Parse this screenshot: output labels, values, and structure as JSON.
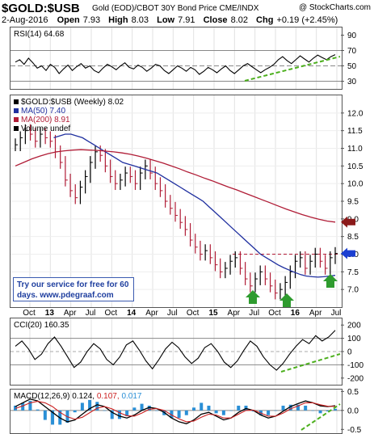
{
  "header": {
    "symbol": "$GOLD:$USB",
    "description": "Gold (EOD)/CBOT 30Y Bond Price  CME/INDX",
    "copyright": "@ StockCharts.com",
    "date": "2-Aug-2016",
    "open_label": "Open",
    "open": "7.93",
    "high_label": "High",
    "high": "8.03",
    "low_label": "Low",
    "low": "7.91",
    "close_label": "Close",
    "close": "8.02",
    "chg_label": "Chg",
    "chg": "+0.19 (+2.45%)"
  },
  "promo": {
    "line1": "Try our service for free for 60",
    "line2": "days.  www.pdegraaf.com"
  },
  "colors": {
    "price": "#000000",
    "ma50": "#1f2f9f",
    "ma200": "#b01c36",
    "trend": "#4caf1d",
    "arrow_up": "#2e9b2e",
    "arrow_ma200": "#8b1a1a",
    "arrow_price": "#1b3fd1",
    "macd_line": "#000000",
    "signal_line": "#cc2020",
    "histogram": "#2a8fd6"
  },
  "chart_data": [
    {
      "type": "line",
      "title": "RSI(14) 64.68",
      "label_name": "RSI(14)",
      "label_value": "64.68",
      "ylim": [
        20,
        100
      ],
      "yticks": [
        30,
        50,
        70,
        90
      ],
      "reference_lines": [
        30,
        50,
        70
      ],
      "values": [
        55,
        58,
        52,
        60,
        54,
        47,
        50,
        44,
        52,
        48,
        40,
        46,
        51,
        44,
        49,
        53,
        47,
        50,
        44,
        41,
        47,
        52,
        49,
        45,
        50,
        54,
        48,
        46,
        51,
        48,
        43,
        47,
        52,
        50,
        44,
        40,
        45,
        50,
        47,
        43,
        48,
        45,
        39,
        43,
        48,
        45,
        41,
        46,
        50,
        44,
        40,
        45,
        50,
        53,
        49,
        45,
        41,
        45,
        48,
        52,
        58,
        62,
        57,
        53,
        58,
        63,
        59,
        55,
        60,
        64,
        61,
        58,
        62,
        64.68
      ]
    },
    {
      "type": "line",
      "title": "$GOLD:$USB (Weekly) 8.02",
      "ylim": [
        6.5,
        12.5
      ],
      "yticks": [
        7.0,
        7.5,
        8.0,
        8.5,
        9.0,
        9.5,
        10.0,
        10.5,
        11.0,
        11.5,
        12.0
      ],
      "x_tick_labels": [
        "Oct",
        "13",
        "Apr",
        "Jul",
        "Oct",
        "14",
        "Apr",
        "Jul",
        "Oct",
        "15",
        "Apr",
        "Jul",
        "Oct",
        "16",
        "Apr",
        "Jul"
      ],
      "series": [
        {
          "name": "$GOLD:$USB (Weekly) 8.02",
          "values": [
            11.1,
            11.3,
            11.5,
            11.4,
            11.2,
            11.4,
            11.3,
            11.2,
            10.9,
            10.6,
            10.1,
            9.8,
            9.6,
            9.9,
            10.2,
            10.6,
            10.9,
            10.8,
            10.5,
            10.2,
            10.0,
            10.1,
            10.3,
            10.2,
            10.0,
            10.3,
            10.5,
            10.3,
            10.0,
            9.8,
            9.5,
            9.3,
            9.1,
            8.9,
            8.7,
            8.4,
            8.2,
            8.0,
            8.1,
            7.9,
            7.7,
            7.5,
            7.6,
            7.8,
            7.9,
            7.6,
            7.3,
            7.1,
            7.3,
            7.5,
            7.3,
            7.1,
            6.9,
            7.0,
            7.2,
            7.5,
            7.8,
            7.9,
            7.6,
            7.8,
            8.0,
            7.8,
            7.6,
            7.9,
            8.02
          ]
        },
        {
          "name": "MA(50) 7.40",
          "values": [
            11.3,
            11.35,
            11.4,
            11.4,
            11.35,
            11.3,
            11.2,
            11.1,
            11.0,
            10.9,
            10.8,
            10.7,
            10.6,
            10.55,
            10.5,
            10.45,
            10.4,
            10.35,
            10.3,
            10.2,
            10.1,
            10.0,
            9.9,
            9.8,
            9.7,
            9.6,
            9.5,
            9.35,
            9.2,
            9.05,
            8.9,
            8.75,
            8.6,
            8.45,
            8.3,
            8.15,
            8.0,
            7.9,
            7.8,
            7.7,
            7.62,
            7.55,
            7.48,
            7.42,
            7.38,
            7.36,
            7.35,
            7.36,
            7.38,
            7.4
          ]
        },
        {
          "name": "MA(200) 8.91",
          "values": [
            10.5,
            10.6,
            10.7,
            10.78,
            10.85,
            10.9,
            10.93,
            10.95,
            10.96,
            10.95,
            10.94,
            10.92,
            10.9,
            10.87,
            10.83,
            10.78,
            10.72,
            10.65,
            10.58,
            10.5,
            10.42,
            10.33,
            10.25,
            10.16,
            10.08,
            9.99,
            9.9,
            9.82,
            9.73,
            9.64,
            9.55,
            9.46,
            9.37,
            9.28,
            9.2,
            9.12,
            9.05,
            8.99,
            8.94,
            8.91
          ]
        },
        {
          "name": "Volume undef",
          "values": []
        }
      ]
    },
    {
      "type": "line",
      "title": "CCI(20) 160.35",
      "label_name": "CCI(20)",
      "label_value": "160.35",
      "ylim": [
        -250,
        250
      ],
      "yticks": [
        -200,
        -100,
        0,
        100,
        200
      ],
      "reference_lines": [
        -100,
        100
      ],
      "values": [
        40,
        80,
        20,
        -60,
        -20,
        60,
        110,
        40,
        -40,
        -120,
        -80,
        0,
        60,
        20,
        -60,
        -100,
        -40,
        50,
        80,
        10,
        -70,
        -130,
        -60,
        20,
        70,
        30,
        -40,
        -90,
        -50,
        30,
        60,
        0,
        -80,
        -120,
        -70,
        10,
        80,
        40,
        -40,
        -100,
        -140,
        -90,
        -20,
        40,
        90,
        60,
        120,
        80,
        110,
        160.35
      ]
    },
    {
      "type": "line",
      "title": "MACD(12,26,9) 0.124, 0.107, 0.017",
      "label_name": "MACD(12,26,9)",
      "macd_value": "0.124",
      "signal_value": "0.107",
      "hist_value": "0.017",
      "ylim": [
        -0.6,
        0.55
      ],
      "yticks": [
        -0.5,
        0.0,
        0.5
      ],
      "series": [
        {
          "name": "MACD",
          "values": [
            0.1,
            0.2,
            0.3,
            0.25,
            0.1,
            -0.05,
            -0.2,
            -0.3,
            -0.25,
            -0.1,
            0.05,
            0.15,
            0.1,
            -0.05,
            -0.15,
            -0.2,
            -0.12,
            0.0,
            0.08,
            0.05,
            -0.05,
            -0.2,
            -0.3,
            -0.35,
            -0.25,
            -0.1,
            -0.05,
            -0.15,
            -0.25,
            -0.2,
            -0.05,
            0.05,
            0.0,
            -0.12,
            -0.2,
            -0.15,
            -0.02,
            0.1,
            0.18,
            0.25,
            0.2,
            0.12,
            0.1,
            0.124
          ]
        },
        {
          "name": "Signal",
          "values": [
            0.05,
            0.12,
            0.2,
            0.24,
            0.2,
            0.1,
            -0.05,
            -0.17,
            -0.23,
            -0.18,
            -0.06,
            0.06,
            0.1,
            0.04,
            -0.06,
            -0.14,
            -0.15,
            -0.07,
            0.03,
            0.05,
            0.0,
            -0.12,
            -0.22,
            -0.3,
            -0.28,
            -0.18,
            -0.1,
            -0.12,
            -0.2,
            -0.2,
            -0.1,
            0.0,
            0.01,
            -0.07,
            -0.15,
            -0.15,
            -0.07,
            0.04,
            0.12,
            0.2,
            0.2,
            0.15,
            0.11,
            0.107
          ]
        }
      ]
    }
  ]
}
